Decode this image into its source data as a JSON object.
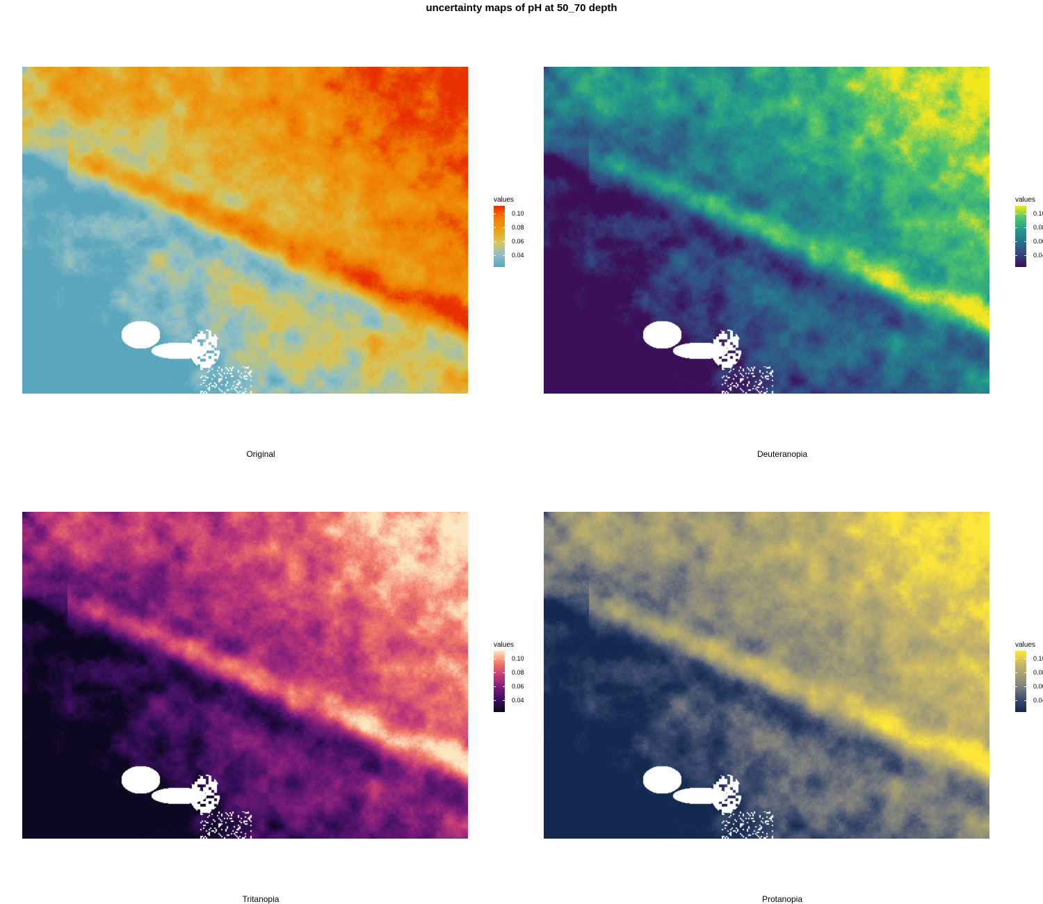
{
  "title": "uncertainty maps of pH at 50_70 depth",
  "legend_title": "values",
  "legend_ticks": [
    "0.10",
    "0.08",
    "0.06",
    "0.04"
  ],
  "panels": [
    {
      "label": "Original",
      "palette": [
        "#5aa6bd",
        "#8fbfc7",
        "#d6c65c",
        "#eba018",
        "#f07f00",
        "#e83000"
      ]
    },
    {
      "label": "Deuteranopia",
      "palette": [
        "#3b0f57",
        "#35437f",
        "#2a6e8c",
        "#22998c",
        "#4dc46c",
        "#f2e61f"
      ]
    },
    {
      "label": "Tritanopia",
      "palette": [
        "#0c0720",
        "#3a0f5e",
        "#7a1c7a",
        "#c43a78",
        "#f27968",
        "#fde6c2"
      ]
    },
    {
      "label": "Protanopia",
      "palette": [
        "#13294f",
        "#3a4a6d",
        "#7a7c7e",
        "#a59f74",
        "#cdb965",
        "#fde73a"
      ]
    }
  ]
}
